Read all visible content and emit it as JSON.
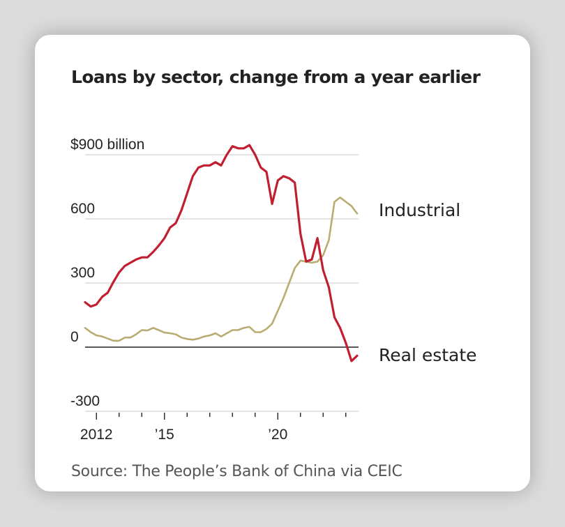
{
  "chart_data": {
    "type": "line",
    "title": "Loans by sector, change from a year earlier",
    "source": "Source: The People’s Bank of China via CEIC",
    "y_unit_label": "$900 billion",
    "ylim": [
      -300,
      900
    ],
    "yticks": [
      {
        "value": 900,
        "label": "$900 billion"
      },
      {
        "value": 600,
        "label": "600"
      },
      {
        "value": 300,
        "label": "300"
      },
      {
        "value": 0,
        "label": "0"
      },
      {
        "value": -300,
        "label": "-300"
      }
    ],
    "xlim": [
      2011.5,
      2023.5
    ],
    "xticks": [
      2012,
      2013,
      2014,
      2015,
      2016,
      2017,
      2018,
      2019,
      2020,
      2021,
      2022,
      2023
    ],
    "xtick_labels": [
      {
        "value": 2012,
        "label": "2012"
      },
      {
        "value": 2015,
        "label": "’15"
      },
      {
        "value": 2020,
        "label": "’20"
      }
    ],
    "grid": true,
    "series": [
      {
        "name": "Industrial",
        "color": "#b9ac72",
        "x": [
          2011.5,
          2011.75,
          2012.0,
          2012.25,
          2012.5,
          2012.75,
          2013.0,
          2013.25,
          2013.5,
          2013.75,
          2014.0,
          2014.25,
          2014.5,
          2014.75,
          2015.0,
          2015.25,
          2015.5,
          2015.75,
          2016.0,
          2016.25,
          2016.5,
          2016.75,
          2017.0,
          2017.25,
          2017.5,
          2017.75,
          2018.0,
          2018.25,
          2018.5,
          2018.75,
          2019.0,
          2019.25,
          2019.5,
          2019.75,
          2020.0,
          2020.25,
          2020.5,
          2020.75,
          2021.0,
          2021.25,
          2021.5,
          2021.75,
          2022.0,
          2022.25,
          2022.5,
          2022.75,
          2023.0,
          2023.25,
          2023.5
        ],
        "values": [
          90,
          70,
          55,
          50,
          40,
          30,
          30,
          45,
          45,
          60,
          80,
          78,
          90,
          80,
          68,
          65,
          60,
          45,
          38,
          35,
          40,
          50,
          55,
          65,
          50,
          65,
          80,
          80,
          90,
          95,
          70,
          70,
          85,
          110,
          170,
          230,
          300,
          370,
          405,
          400,
          395,
          400,
          430,
          500,
          680,
          700,
          680,
          660,
          625
        ]
      },
      {
        "name": "Real estate",
        "color": "#c11f2f",
        "x": [
          2011.5,
          2011.75,
          2012.0,
          2012.25,
          2012.5,
          2012.75,
          2013.0,
          2013.25,
          2013.5,
          2013.75,
          2014.0,
          2014.25,
          2014.5,
          2014.75,
          2015.0,
          2015.25,
          2015.5,
          2015.75,
          2016.0,
          2016.25,
          2016.5,
          2016.75,
          2017.0,
          2017.25,
          2017.5,
          2017.75,
          2018.0,
          2018.25,
          2018.5,
          2018.75,
          2019.0,
          2019.25,
          2019.5,
          2019.75,
          2020.0,
          2020.25,
          2020.5,
          2020.75,
          2021.0,
          2021.25,
          2021.5,
          2021.75,
          2022.0,
          2022.25,
          2022.5,
          2022.75,
          2023.0,
          2023.25,
          2023.5
        ],
        "values": [
          210,
          190,
          200,
          235,
          255,
          305,
          350,
          380,
          395,
          410,
          420,
          420,
          445,
          475,
          510,
          560,
          580,
          640,
          720,
          800,
          840,
          850,
          850,
          865,
          850,
          900,
          940,
          930,
          930,
          945,
          900,
          840,
          820,
          670,
          780,
          800,
          790,
          770,
          530,
          400,
          410,
          510,
          360,
          280,
          140,
          90,
          20,
          -65,
          -40
        ]
      }
    ]
  }
}
